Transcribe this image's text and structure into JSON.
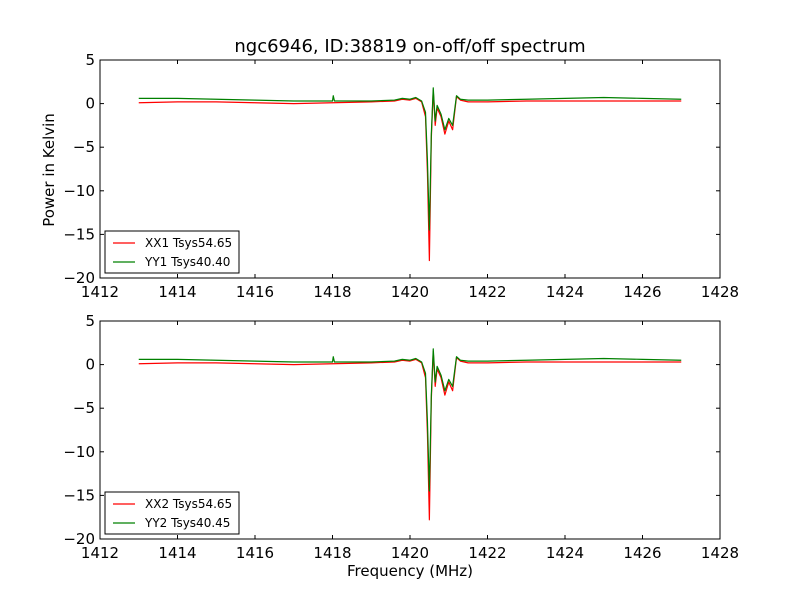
{
  "figure": {
    "title": "ngc6946, ID:38819 on-off/off spectrum",
    "xlabel": "Frequency (MHz)",
    "ylabel": "Power in Kelvin"
  },
  "colors": {
    "xx": "#ff0000",
    "yy": "#008000"
  },
  "chart_data": [
    {
      "type": "line",
      "title": "ngc6946, ID:38819 on-off/off spectrum",
      "xlabel": "",
      "ylabel": "Power in Kelvin",
      "xlim": [
        1412,
        1428
      ],
      "ylim": [
        -20,
        5
      ],
      "xticks": [
        1412,
        1414,
        1416,
        1418,
        1420,
        1422,
        1424,
        1426,
        1428
      ],
      "yticks": [
        5,
        0,
        -5,
        -10,
        -15,
        -20
      ],
      "grid": false,
      "legend": "lower-left",
      "series": [
        {
          "name": "XX1 Tsys54.65",
          "color": "#ff0000",
          "x": [
            1413.0,
            1414.0,
            1415.0,
            1416.0,
            1417.0,
            1418.0,
            1419.0,
            1419.6,
            1419.8,
            1420.0,
            1420.15,
            1420.3,
            1420.4,
            1420.45,
            1420.5,
            1420.55,
            1420.6,
            1420.65,
            1420.7,
            1420.8,
            1420.9,
            1421.0,
            1421.1,
            1421.2,
            1421.3,
            1421.5,
            1422.0,
            1423.0,
            1424.0,
            1425.0,
            1426.0,
            1427.0
          ],
          "y": [
            0.1,
            0.2,
            0.2,
            0.1,
            0.0,
            0.1,
            0.2,
            0.3,
            0.5,
            0.4,
            0.6,
            0.2,
            -1.5,
            -8.0,
            -18.0,
            -4.0,
            1.5,
            -2.5,
            -0.5,
            -1.5,
            -3.5,
            -2.0,
            -3.0,
            0.8,
            0.4,
            0.2,
            0.2,
            0.3,
            0.3,
            0.3,
            0.3,
            0.3
          ]
        },
        {
          "name": "YY1 Tsys40.40",
          "color": "#008000",
          "x": [
            1413.0,
            1414.0,
            1415.0,
            1416.0,
            1417.0,
            1418.0,
            1418.02,
            1418.05,
            1419.0,
            1419.6,
            1419.8,
            1420.0,
            1420.15,
            1420.3,
            1420.4,
            1420.45,
            1420.5,
            1420.55,
            1420.6,
            1420.65,
            1420.7,
            1420.8,
            1420.9,
            1421.0,
            1421.1,
            1421.2,
            1421.3,
            1421.5,
            1422.0,
            1423.0,
            1424.0,
            1425.0,
            1426.0,
            1427.0
          ],
          "y": [
            0.6,
            0.6,
            0.5,
            0.4,
            0.3,
            0.3,
            0.9,
            0.3,
            0.3,
            0.4,
            0.6,
            0.5,
            0.7,
            0.3,
            -1.0,
            -6.5,
            -14.5,
            -3.5,
            1.8,
            -2.0,
            -0.2,
            -1.2,
            -3.0,
            -1.7,
            -2.5,
            0.9,
            0.5,
            0.4,
            0.4,
            0.5,
            0.6,
            0.7,
            0.6,
            0.5
          ]
        }
      ]
    },
    {
      "type": "line",
      "title": "",
      "xlabel": "Frequency (MHz)",
      "ylabel": "",
      "xlim": [
        1412,
        1428
      ],
      "ylim": [
        -20,
        5
      ],
      "xticks": [
        1412,
        1414,
        1416,
        1418,
        1420,
        1422,
        1424,
        1426,
        1428
      ],
      "yticks": [
        5,
        0,
        -5,
        -10,
        -15,
        -20
      ],
      "grid": false,
      "legend": "lower-left",
      "series": [
        {
          "name": "XX2 Tsys54.65",
          "color": "#ff0000",
          "x": [
            1413.0,
            1414.0,
            1415.0,
            1416.0,
            1417.0,
            1418.0,
            1419.0,
            1419.6,
            1419.8,
            1420.0,
            1420.15,
            1420.3,
            1420.4,
            1420.45,
            1420.5,
            1420.55,
            1420.6,
            1420.65,
            1420.7,
            1420.8,
            1420.9,
            1421.0,
            1421.1,
            1421.2,
            1421.3,
            1421.5,
            1422.0,
            1423.0,
            1424.0,
            1425.0,
            1426.0,
            1427.0
          ],
          "y": [
            0.1,
            0.2,
            0.2,
            0.1,
            0.0,
            0.1,
            0.2,
            0.3,
            0.5,
            0.4,
            0.6,
            0.2,
            -1.5,
            -8.0,
            -17.8,
            -4.0,
            1.5,
            -2.5,
            -0.5,
            -1.5,
            -3.5,
            -2.0,
            -3.0,
            0.8,
            0.4,
            0.2,
            0.2,
            0.3,
            0.3,
            0.3,
            0.3,
            0.3
          ]
        },
        {
          "name": "YY2 Tsys40.45",
          "color": "#008000",
          "x": [
            1413.0,
            1414.0,
            1415.0,
            1416.0,
            1417.0,
            1418.0,
            1418.02,
            1418.05,
            1419.0,
            1419.6,
            1419.8,
            1420.0,
            1420.15,
            1420.3,
            1420.4,
            1420.45,
            1420.5,
            1420.55,
            1420.6,
            1420.65,
            1420.7,
            1420.8,
            1420.9,
            1421.0,
            1421.1,
            1421.2,
            1421.3,
            1421.5,
            1422.0,
            1423.0,
            1424.0,
            1425.0,
            1426.0,
            1427.0
          ],
          "y": [
            0.6,
            0.6,
            0.5,
            0.4,
            0.3,
            0.3,
            0.9,
            0.3,
            0.3,
            0.4,
            0.6,
            0.5,
            0.7,
            0.3,
            -1.0,
            -6.5,
            -14.5,
            -3.5,
            1.8,
            -2.0,
            -0.2,
            -1.2,
            -3.0,
            -1.7,
            -2.5,
            0.9,
            0.5,
            0.4,
            0.4,
            0.5,
            0.6,
            0.7,
            0.6,
            0.5
          ]
        }
      ]
    }
  ]
}
